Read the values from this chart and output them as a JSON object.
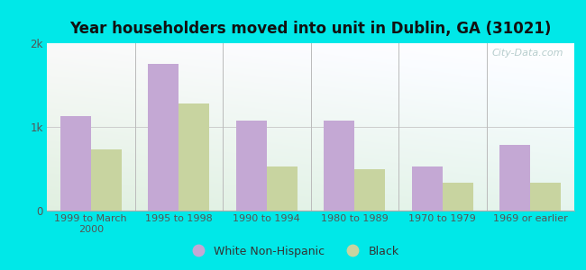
{
  "title": "Year householders moved into unit in Dublin, GA (31021)",
  "categories": [
    "1999 to March\n2000",
    "1995 to 1998",
    "1990 to 1994",
    "1980 to 1989",
    "1970 to 1979",
    "1969 or earlier"
  ],
  "white_values": [
    1130,
    1750,
    1080,
    1080,
    530,
    780
  ],
  "black_values": [
    730,
    1280,
    530,
    500,
    330,
    330
  ],
  "white_color": "#c4a8d4",
  "black_color": "#c8d4a0",
  "background_outer": "#00e8e8",
  "ylim": [
    0,
    2000
  ],
  "yticks": [
    0,
    1000,
    2000
  ],
  "ytick_labels": [
    "0",
    "1k",
    "2k"
  ],
  "bar_width": 0.35,
  "legend_labels": [
    "White Non-Hispanic",
    "Black"
  ],
  "watermark": "City-Data.com",
  "separator_color": "#bbbbbb"
}
